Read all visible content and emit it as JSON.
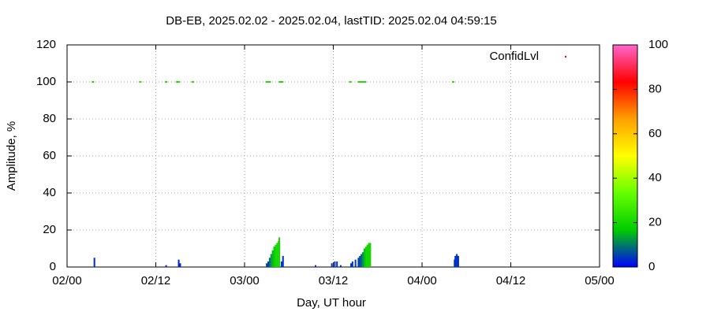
{
  "chart_data": {
    "type": "impulse",
    "title": "DB-EB, 2025.02.02 - 2025.02.04, lastTID: 2025.02.04 04:59:15",
    "x_label": "Day, UT hour",
    "y_label": "Amplitude, %",
    "xlim": [
      0,
      72
    ],
    "xticks": [
      {
        "value": 0,
        "label": "02/00"
      },
      {
        "value": 12,
        "label": "02/12"
      },
      {
        "value": 24,
        "label": "03/00"
      },
      {
        "value": 36,
        "label": "03/12"
      },
      {
        "value": 48,
        "label": "04/00"
      },
      {
        "value": 60,
        "label": "04/12"
      },
      {
        "value": 72,
        "label": "05/00"
      }
    ],
    "ylim": [
      0,
      120
    ],
    "yticks": [
      0,
      20,
      40,
      60,
      80,
      100,
      120
    ],
    "grid": true,
    "legend_position": "top-right",
    "legend_color": "#ff0000",
    "clim": [
      0,
      100
    ],
    "cticks": [
      0,
      20,
      40,
      60,
      80,
      100
    ],
    "palette": [
      "#0000ff",
      "#00cc00",
      "#66ff00",
      "#ffff00",
      "#ffa000",
      "#ff0000",
      "#ff66cc"
    ],
    "impulses": {
      "x": [
        3.7,
        13.4,
        15.1,
        15.3,
        27.0,
        27.2,
        27.4,
        27.6,
        27.8,
        28.0,
        28.2,
        28.4,
        28.6,
        28.7,
        29.0,
        29.2,
        33.6,
        35.8,
        36.2,
        36.5,
        37.0,
        38.4,
        38.6,
        39.0,
        39.4,
        39.6,
        39.8,
        40.0,
        40.2,
        40.4,
        40.6,
        40.8,
        41.0,
        52.4,
        52.5,
        52.7,
        52.9
      ],
      "values": [
        5,
        1,
        4,
        2,
        2,
        3,
        5,
        7,
        9,
        11,
        12,
        13,
        14,
        16,
        3,
        6,
        1,
        2,
        3,
        3,
        1,
        2,
        3,
        4,
        5,
        6,
        7,
        8,
        10,
        11,
        12,
        13,
        13,
        4,
        6,
        7,
        6
      ],
      "levels": [
        3,
        3,
        3,
        3,
        5,
        5,
        8,
        12,
        15,
        18,
        20,
        20,
        20,
        20,
        4,
        4,
        3,
        4,
        4,
        4,
        3,
        4,
        4,
        4,
        5,
        5,
        8,
        12,
        15,
        18,
        20,
        20,
        20,
        4,
        4,
        4,
        4
      ]
    },
    "points": {
      "name": "ConfidLvl",
      "x": [
        3.5,
        9.9,
        13.4,
        14.9,
        15.1,
        17.0,
        27.0,
        27.2,
        27.4,
        28.8,
        29.0,
        29.1,
        38.3,
        39.5,
        39.8,
        40.0,
        40.3,
        52.2
      ],
      "values": [
        100,
        100,
        100,
        100,
        100,
        100,
        100,
        100,
        100,
        100,
        100,
        100,
        100,
        100,
        100,
        100,
        100,
        100
      ],
      "levels": [
        22,
        22,
        22,
        22,
        22,
        22,
        22,
        22,
        22,
        22,
        22,
        22,
        22,
        22,
        22,
        22,
        22,
        22
      ]
    }
  }
}
